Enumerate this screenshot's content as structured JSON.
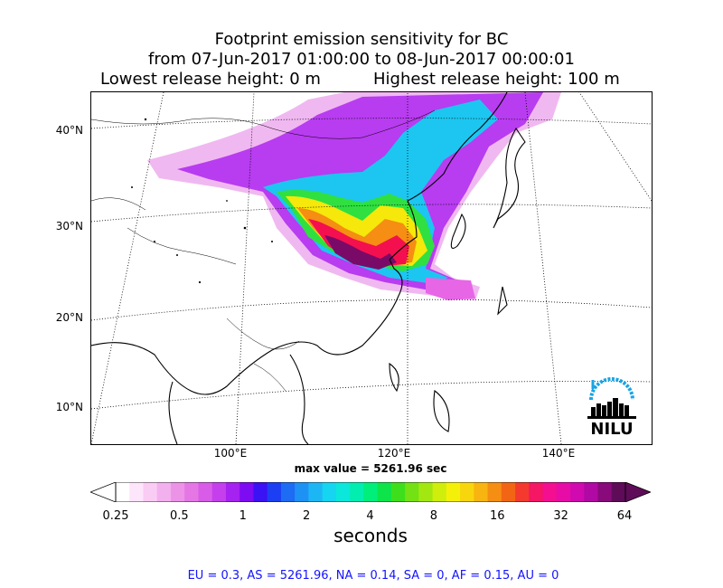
{
  "title": {
    "line1": "Footprint emission sensitivity for BC",
    "line2": "from 07-Jun-2017 01:00:00 to 08-Jun-2017 00:00:01",
    "lowest": "Lowest release height: 0 m",
    "highest": "Highest release height: 100 m"
  },
  "map": {
    "lat_labels": [
      "40°N",
      "30°N",
      "20°N",
      "10°N"
    ],
    "lon_labels": [
      "100°E",
      "120°E",
      "140°E"
    ],
    "max_value": "max value = 5261.96 sec",
    "logo_text": "NILU"
  },
  "colorbar": {
    "ticks": [
      "0.25",
      "0.5",
      "1",
      "2",
      "4",
      "8",
      "16",
      "32",
      "64"
    ],
    "unit": "seconds",
    "colors": [
      "#ffffff",
      "#fde5fb",
      "#f9ccf4",
      "#f3b0ee",
      "#ec93e8",
      "#e577e5",
      "#d95ce8",
      "#c540ec",
      "#a622f0",
      "#7e0cf2",
      "#3a12f4",
      "#1c3ff4",
      "#1e6bf4",
      "#1e92f4",
      "#1db6f4",
      "#15d5f0",
      "#0be7db",
      "#02eeb1",
      "#00ee7a",
      "#0de44a",
      "#3ddf1d",
      "#73e114",
      "#a2e810",
      "#cfee0c",
      "#f5f00a",
      "#f8d60e",
      "#f8b410",
      "#f58e12",
      "#f26515",
      "#f43a2e",
      "#f51664",
      "#f40f90",
      "#e70ca5",
      "#d10ab0",
      "#b109a3",
      "#890a7a",
      "#5e0c58"
    ],
    "accent_colors": {
      "under": "#ffffff",
      "over": "#5e0c58"
    }
  },
  "footer": "EU = 0.3,  AS = 5261.96,  NA = 0.14,  SA = 0,  AF = 0.15,  AU = 0"
}
